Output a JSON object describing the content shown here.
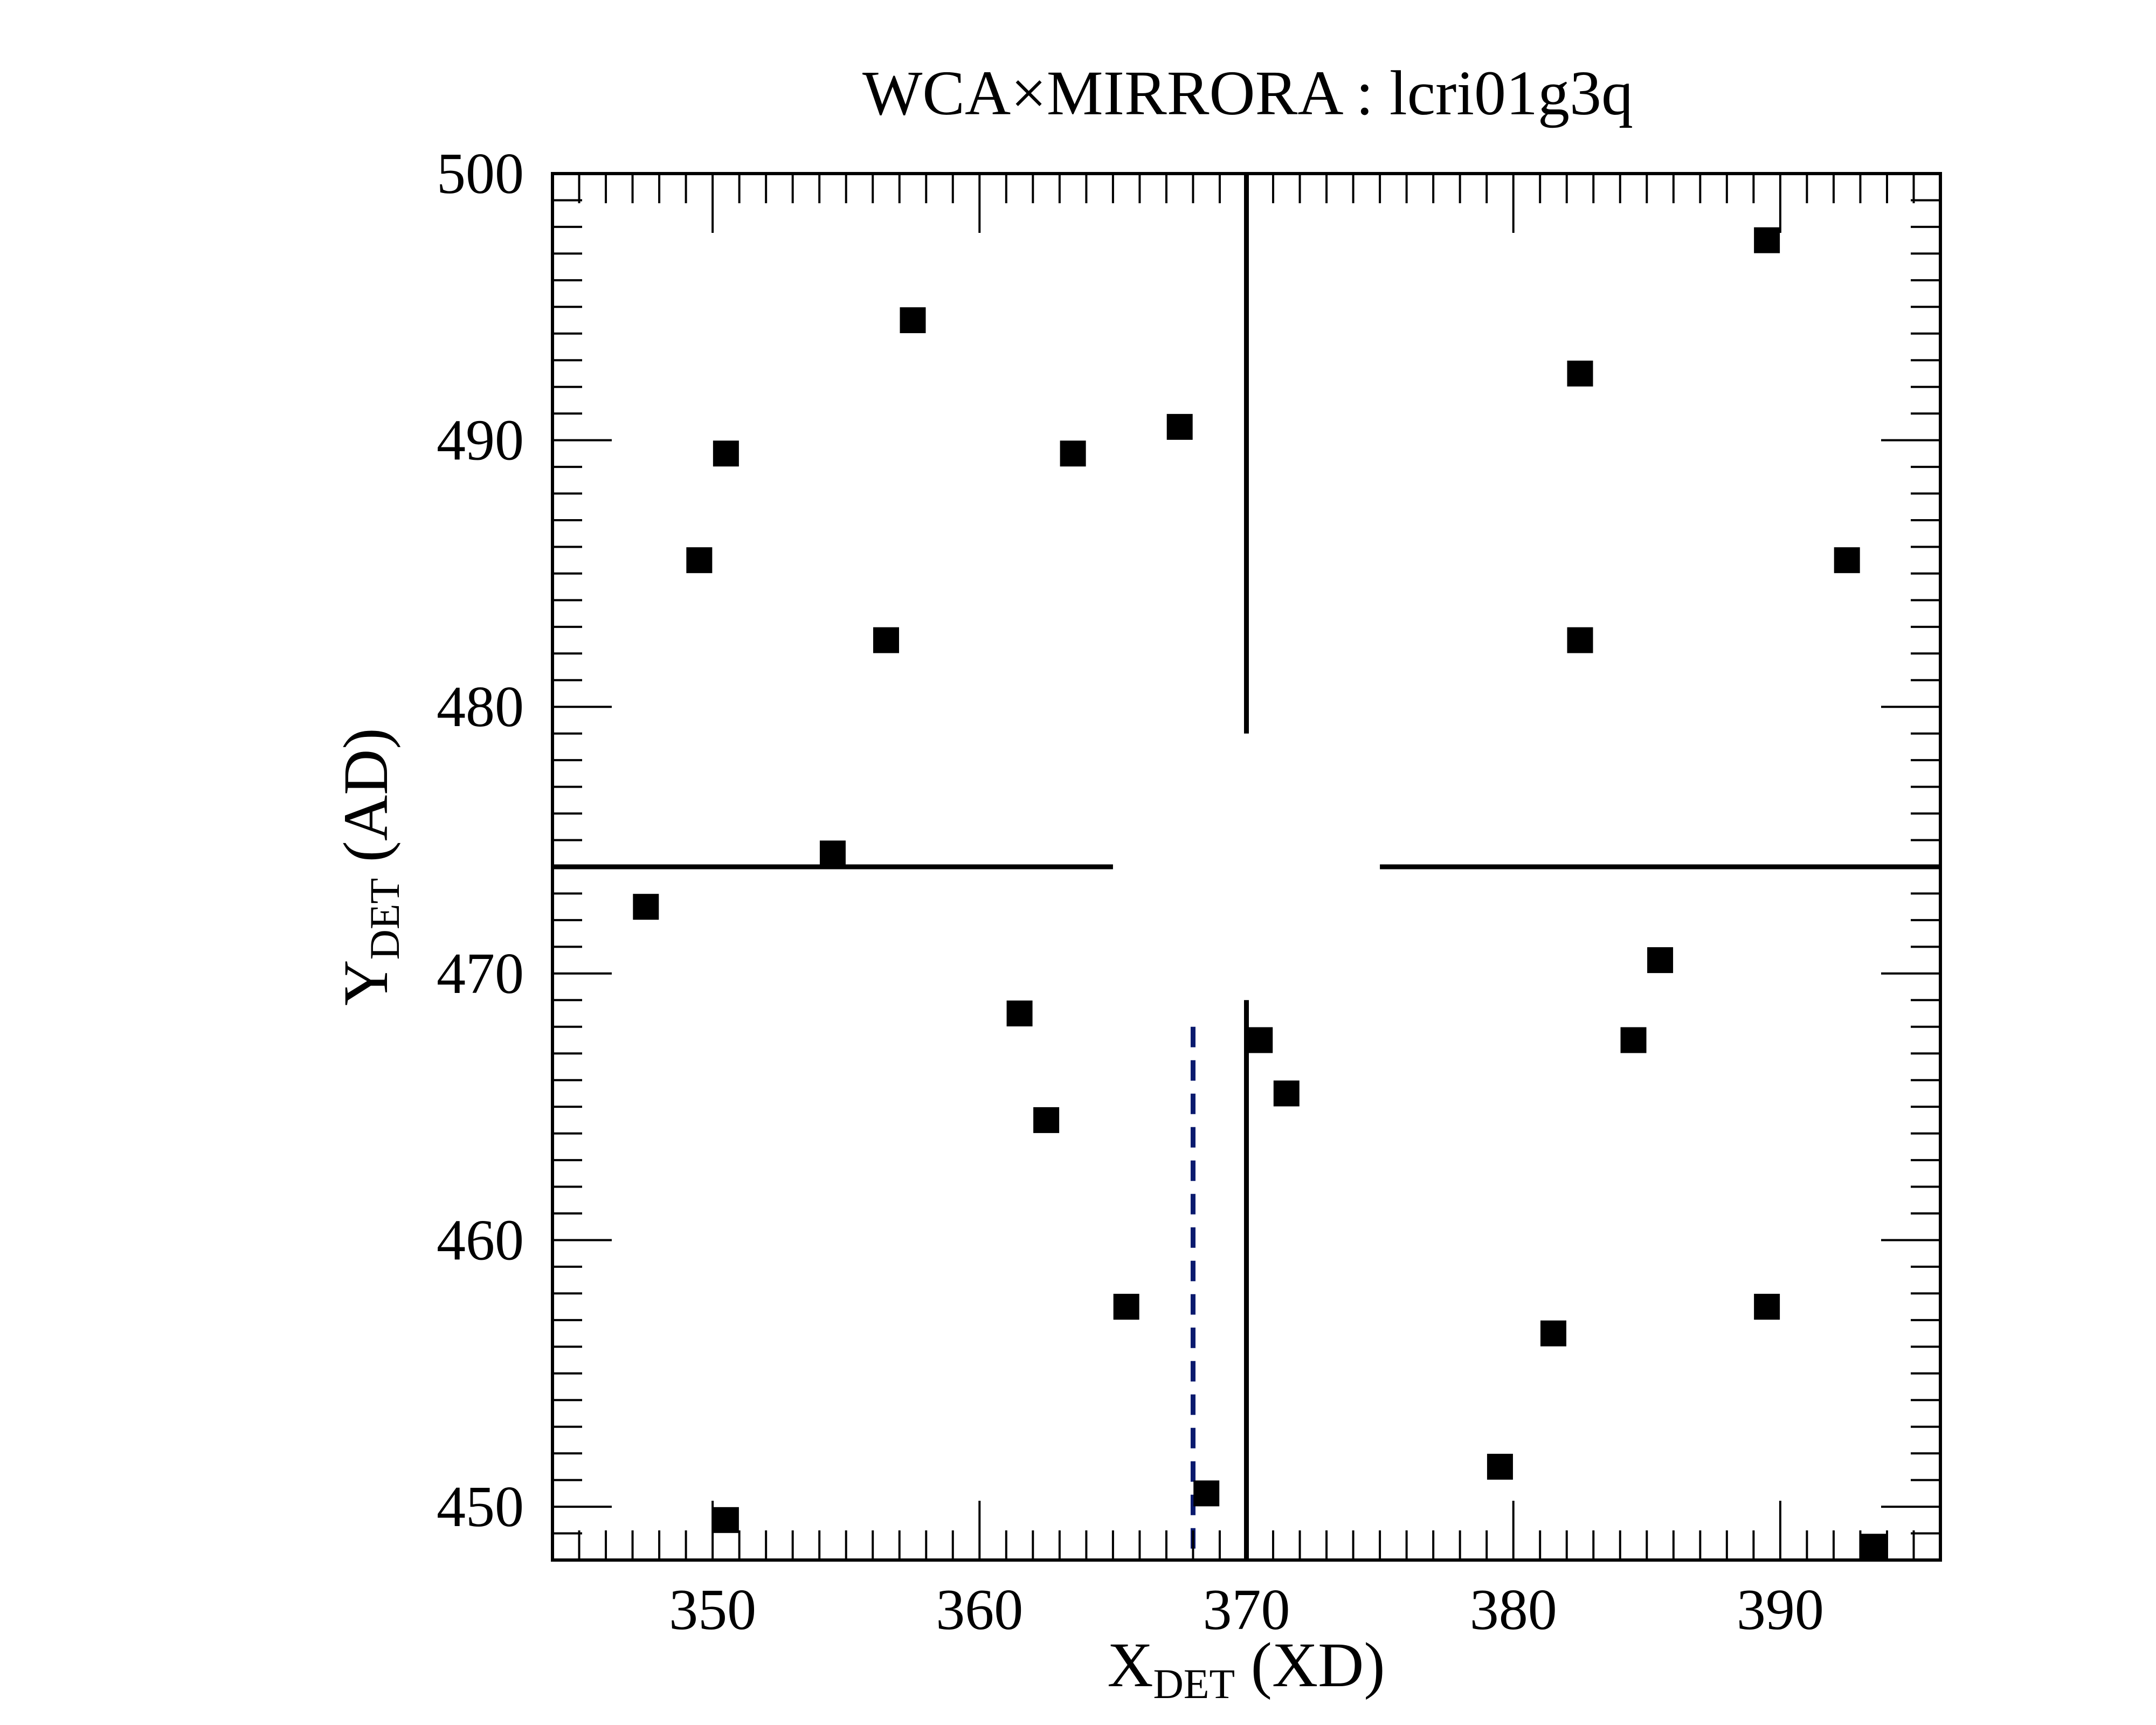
{
  "chart_data": {
    "type": "scatter",
    "title": "WCA×MIRRORA : lcri01g3q",
    "xlabel": {
      "main": "X",
      "sub": "DET",
      "rest": " (XD)"
    },
    "ylabel": {
      "main": "Y",
      "sub": "DET",
      "rest": " (AD)"
    },
    "xlim": [
      344,
      396
    ],
    "ylim": [
      448,
      500
    ],
    "xticks": [
      350,
      360,
      370,
      380,
      390
    ],
    "yticks": [
      450,
      460,
      470,
      480,
      490,
      500
    ],
    "grid": false,
    "marker": "square",
    "marker_color": "#000000",
    "points": [
      {
        "x": 347.5,
        "y": 472.5
      },
      {
        "x": 349.5,
        "y": 485.5
      },
      {
        "x": 350.5,
        "y": 489.5
      },
      {
        "x": 350.5,
        "y": 449.5
      },
      {
        "x": 354.5,
        "y": 474.5
      },
      {
        "x": 356.5,
        "y": 482.5
      },
      {
        "x": 357.5,
        "y": 494.5
      },
      {
        "x": 361.5,
        "y": 468.5
      },
      {
        "x": 362.5,
        "y": 464.5
      },
      {
        "x": 363.5,
        "y": 489.5
      },
      {
        "x": 365.5,
        "y": 457.5
      },
      {
        "x": 367.5,
        "y": 490.5
      },
      {
        "x": 368.5,
        "y": 450.5
      },
      {
        "x": 370.5,
        "y": 467.5
      },
      {
        "x": 371.5,
        "y": 465.5
      },
      {
        "x": 379.5,
        "y": 451.5
      },
      {
        "x": 381.5,
        "y": 456.5
      },
      {
        "x": 382.5,
        "y": 492.5
      },
      {
        "x": 382.5,
        "y": 482.5
      },
      {
        "x": 384.5,
        "y": 467.5
      },
      {
        "x": 385.5,
        "y": 470.5
      },
      {
        "x": 389.5,
        "y": 497.5
      },
      {
        "x": 389.5,
        "y": 457.5
      },
      {
        "x": 392.5,
        "y": 485.5
      },
      {
        "x": 393.5,
        "y": 448.5
      }
    ],
    "crosshair": {
      "x": 370,
      "y": 474,
      "color": "#000000",
      "segments": [
        {
          "x1": 370,
          "y1": 479,
          "x2": 370,
          "y2": 500
        },
        {
          "x1": 370,
          "y1": 448,
          "x2": 370,
          "y2": 469
        },
        {
          "x1": 344,
          "y1": 474,
          "x2": 365,
          "y2": 474
        },
        {
          "x1": 375,
          "y1": 474,
          "x2": 396,
          "y2": 474
        }
      ]
    },
    "reference_line": {
      "x": 368,
      "y_from": 448,
      "y_to": 468,
      "style": "dashed",
      "color": "#0a1a6e"
    }
  }
}
